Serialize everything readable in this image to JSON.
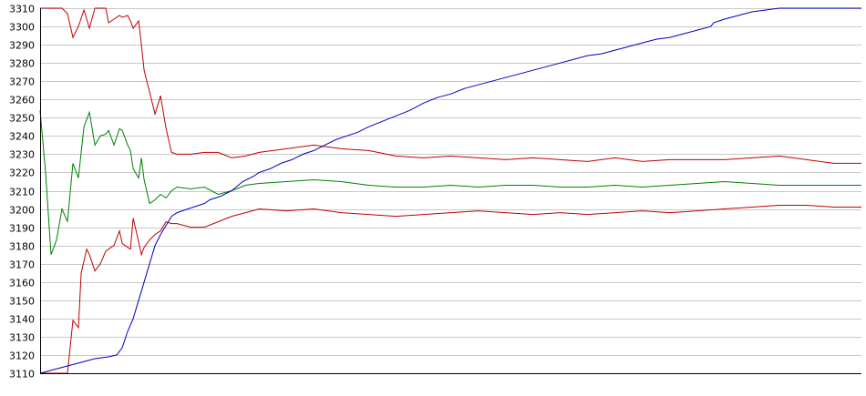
{
  "chart_data": {
    "type": "line",
    "title": "",
    "xlabel": "",
    "ylabel": "",
    "ylim": [
      3110,
      3310
    ],
    "xlim": [
      0,
      300
    ],
    "grid": true,
    "y_ticks": [
      "3110",
      "3120",
      "3130",
      "3140",
      "3150",
      "3160",
      "3170",
      "3180",
      "3190",
      "3200",
      "3210",
      "3220",
      "3230",
      "3240",
      "3250",
      "3260",
      "3270",
      "3280",
      "3290",
      "3300",
      "3310"
    ],
    "colors": {
      "upper": "#c00000",
      "middle": "#008000",
      "lower": "#c00000",
      "trend": "#0000c0",
      "grid": "#c8c8c8"
    },
    "series": [
      {
        "key": "upper",
        "x": [
          0,
          5,
          8,
          10,
          12,
          14,
          16,
          18,
          20,
          22,
          24,
          25,
          27,
          29,
          30,
          32,
          33,
          34,
          36,
          37,
          38,
          40,
          42,
          44,
          46,
          48,
          50,
          55,
          60,
          65,
          70,
          75,
          80,
          90,
          100,
          110,
          120,
          130,
          140,
          150,
          160,
          170,
          180,
          190,
          200,
          210,
          220,
          230,
          240,
          250,
          260,
          270,
          280,
          290,
          300
        ],
        "values": [
          3310,
          3310,
          3310,
          3307,
          3294,
          3300,
          3309,
          3299,
          3310,
          3310,
          3310,
          3302,
          3304,
          3306,
          3305,
          3306,
          3303,
          3299,
          3303,
          3290,
          3276,
          3264,
          3252,
          3262,
          3244,
          3231,
          3230,
          3230,
          3231,
          3231,
          3228,
          3229,
          3231,
          3233,
          3235,
          3233,
          3232,
          3229,
          3228,
          3229,
          3228,
          3227,
          3228,
          3227,
          3226,
          3228,
          3226,
          3227,
          3227,
          3227,
          3228,
          3229,
          3227,
          3225,
          3225
        ]
      },
      {
        "key": "middle",
        "x": [
          0,
          2,
          4,
          6,
          8,
          10,
          12,
          14,
          16,
          18,
          20,
          22,
          24,
          25,
          27,
          29,
          30,
          32,
          33,
          34,
          36,
          37,
          38,
          40,
          42,
          44,
          46,
          48,
          50,
          55,
          60,
          65,
          70,
          75,
          80,
          90,
          100,
          110,
          120,
          130,
          140,
          150,
          160,
          170,
          180,
          190,
          200,
          210,
          220,
          230,
          240,
          250,
          260,
          270,
          280,
          290,
          300
        ],
        "values": [
          3254,
          3220,
          3175,
          3183,
          3200,
          3193,
          3225,
          3217,
          3245,
          3253,
          3235,
          3240,
          3241,
          3243,
          3235,
          3244,
          3243,
          3235,
          3232,
          3222,
          3217,
          3228,
          3216,
          3203,
          3205,
          3208,
          3206,
          3210,
          3212,
          3211,
          3212,
          3208,
          3210,
          3213,
          3214,
          3215,
          3216,
          3215,
          3213,
          3212,
          3212,
          3213,
          3212,
          3213,
          3213,
          3212,
          3212,
          3213,
          3212,
          3213,
          3214,
          3215,
          3214,
          3213,
          3213,
          3213,
          3213
        ]
      },
      {
        "key": "lower",
        "x": [
          0,
          5,
          8,
          10,
          12,
          14,
          15,
          17,
          18,
          20,
          22,
          24,
          25,
          27,
          29,
          30,
          32,
          33,
          34,
          36,
          37,
          38,
          40,
          42,
          44,
          46,
          48,
          50,
          55,
          60,
          65,
          70,
          75,
          80,
          90,
          100,
          110,
          120,
          130,
          140,
          150,
          160,
          170,
          180,
          190,
          200,
          210,
          220,
          230,
          240,
          250,
          260,
          270,
          280,
          290,
          300
        ],
        "values": [
          3110,
          3110,
          3110,
          3110,
          3139,
          3135,
          3165,
          3178,
          3175,
          3166,
          3170,
          3177,
          3178,
          3180,
          3188,
          3181,
          3179,
          3178,
          3195,
          3182,
          3175,
          3179,
          3183,
          3186,
          3188,
          3193,
          3192,
          3192,
          3190,
          3190,
          3193,
          3196,
          3198,
          3200,
          3199,
          3200,
          3198,
          3197,
          3196,
          3197,
          3198,
          3199,
          3198,
          3197,
          3198,
          3197,
          3198,
          3199,
          3198,
          3199,
          3200,
          3201,
          3202,
          3202,
          3201,
          3201
        ]
      },
      {
        "key": "trend",
        "x": [
          0,
          5,
          10,
          15,
          20,
          25,
          28,
          30,
          32,
          34,
          36,
          38,
          40,
          42,
          44,
          46,
          48,
          50,
          52,
          54,
          56,
          58,
          60,
          62,
          64,
          66,
          70,
          74,
          78,
          80,
          84,
          88,
          92,
          96,
          100,
          104,
          108,
          112,
          116,
          120,
          125,
          130,
          135,
          140,
          145,
          150,
          155,
          160,
          165,
          170,
          175,
          180,
          185,
          190,
          195,
          200,
          205,
          210,
          215,
          220,
          225,
          230,
          235,
          240,
          245,
          246,
          248,
          250,
          255,
          260,
          265,
          270,
          275,
          280,
          285,
          290,
          295,
          300
        ],
        "values": [
          3110,
          3112,
          3114,
          3116,
          3118,
          3119,
          3120,
          3124,
          3133,
          3140,
          3150,
          3160,
          3170,
          3180,
          3186,
          3191,
          3196,
          3198,
          3199,
          3200,
          3201,
          3202,
          3203,
          3205,
          3206,
          3207,
          3210,
          3215,
          3218,
          3220,
          3222,
          3225,
          3227,
          3230,
          3232,
          3235,
          3238,
          3240,
          3242,
          3245,
          3248,
          3251,
          3254,
          3258,
          3261,
          3263,
          3266,
          3268,
          3270,
          3272,
          3274,
          3276,
          3278,
          3280,
          3282,
          3284,
          3285,
          3287,
          3289,
          3291,
          3293,
          3294,
          3296,
          3298,
          3300,
          3302,
          3303,
          3304,
          3306,
          3308,
          3309,
          3310,
          3310,
          3310,
          3310,
          3310,
          3310,
          3310
        ]
      }
    ]
  }
}
